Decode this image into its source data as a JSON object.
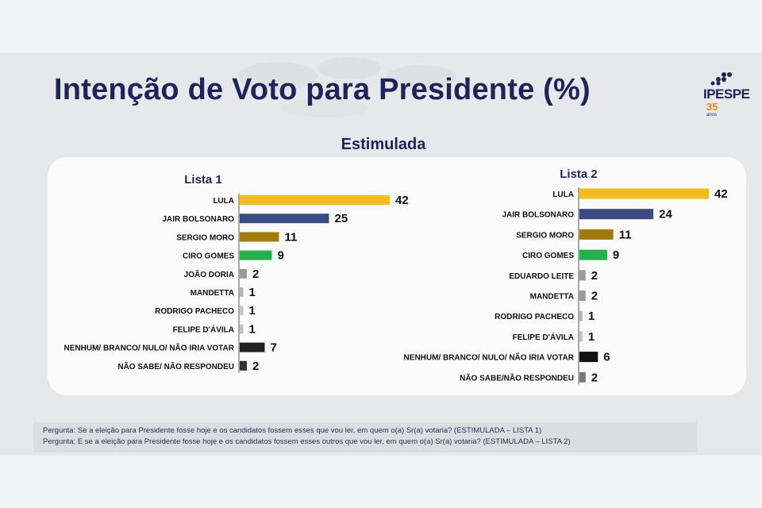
{
  "title": "Intenção de Voto para Presidente (%)",
  "subtitle": "Estimulada",
  "logo": {
    "brand": "IPESPE",
    "years": "35",
    "suffix": "anos"
  },
  "colors": {
    "title": "#1e2459",
    "lula": "#f5bd1c",
    "bolsonaro": "#3b4b84",
    "moro": "#a27b0c",
    "ciro": "#22b14c",
    "minor": "#9a9a9a",
    "none": "#202020"
  },
  "chart_data": [
    {
      "type": "bar",
      "orientation": "horizontal",
      "title": "Lista 1",
      "categories": [
        "LULA",
        "JAIR BOLSONARO",
        "SERGIO MORO",
        "CIRO GOMES",
        "JOÃO DORIA",
        "MANDETTA",
        "RODRIGO PACHECO",
        "FELIPE D'ÁVILA",
        "NENHUM/ BRANCO/ NULO/ NÃO IRIA VOTAR",
        "NÃO SABE/ NÃO RESPONDEU"
      ],
      "values": [
        42,
        25,
        11,
        9,
        2,
        1,
        1,
        1,
        7,
        2
      ],
      "bar_colors": [
        "#f5bd1c",
        "#3b4b84",
        "#a27b0c",
        "#22b14c",
        "#9a9a9a",
        "#b5b5b5",
        "#c4c4c4",
        "#c4c4c4",
        "#222222",
        "#333333"
      ],
      "data_labels": true
    },
    {
      "type": "bar",
      "orientation": "horizontal",
      "title": "Lista 2",
      "categories": [
        "LULA",
        "JAIR BOLSONARO",
        "SERGIO MORO",
        "CIRO GOMES",
        "EDUARDO LEITE",
        "MANDETTA",
        "RODRIGO PACHECO",
        "FELIPE D'ÁVILA",
        "NENHUM/ BRANCO/ NULO/ NÃO IRIA VOTAR",
        "NÃO SABE/NÃO RESPONDEU"
      ],
      "values": [
        42,
        24,
        11,
        9,
        2,
        2,
        1,
        1,
        6,
        2
      ],
      "bar_colors": [
        "#f5bd1c",
        "#3b4b84",
        "#a27b0c",
        "#22b14c",
        "#9a9a9a",
        "#9a9a9a",
        "#b5b5b5",
        "#c4c4c4",
        "#111111",
        "#777777"
      ],
      "data_labels": true
    }
  ],
  "footnote": {
    "line1": "Pergunta:  Se a eleição para Presidente fosse hoje e os candidatos fossem esses que vou ler, em quem o(a) Sr(a) votaria? (ESTIMULADA – LISTA 1)",
    "line2": "Pergunta:  E se a eleição para Presidente fosse hoje e os candidatos fossem esses outros que vou ler, em quem o(a) Sr(a) votaria?  (ESTIMULADA – LISTA 2)"
  }
}
